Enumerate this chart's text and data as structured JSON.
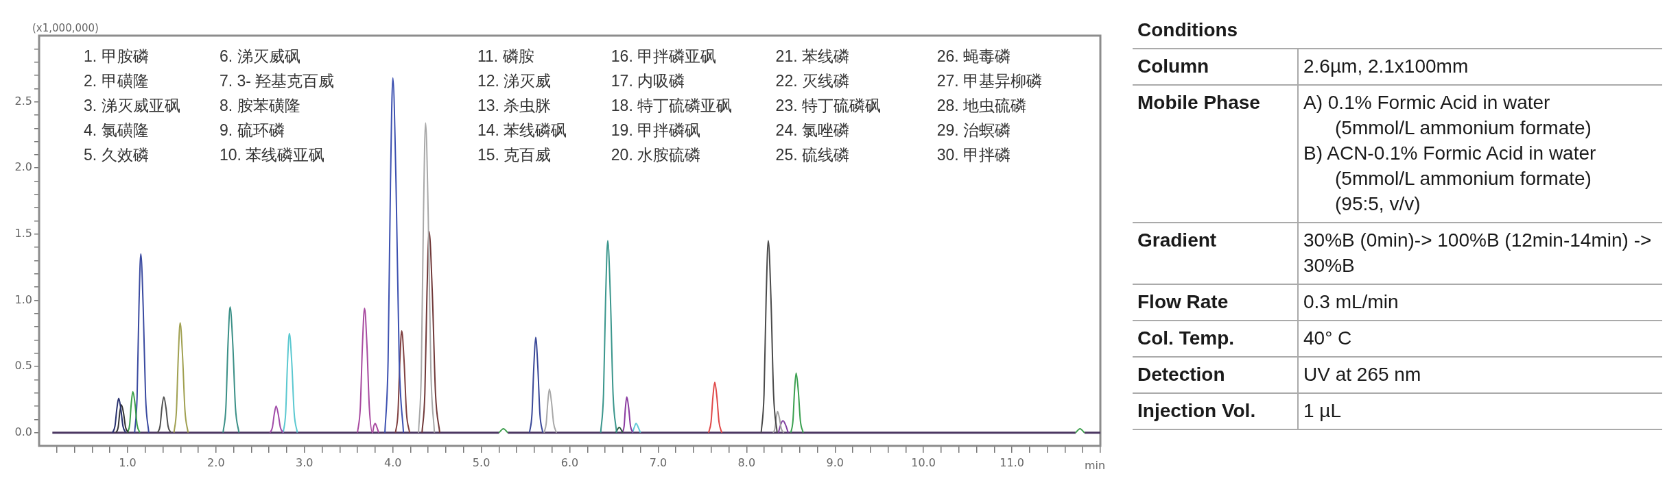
{
  "chart_data": [
    {
      "type": "line",
      "ylabel": "(x1,000,000)",
      "xlabel": "min",
      "marker": "none",
      "annotations": [
        "1. 甲胺磷",
        "2. 甲磺隆",
        "3. 涕灭威亚砜",
        "4. 氯磺隆",
        "5. 久效磷",
        "6. 涕灭威砜",
        "7. 3- 羟基克百威",
        "8. 胺苯磺隆",
        "9. 硫环磷",
        "10. 苯线磷亚砜",
        "11. 磷胺",
        "12. 涕灭威",
        "13. 杀虫脒",
        "14. 苯线磷砜",
        "15. 克百威",
        "16. 甲拌磷亚砜",
        "17. 内吸磷",
        "18. 特丁硫磷亚砜",
        "19. 甲拌磷砜",
        "20. 水胺硫磷",
        "21. 苯线磷",
        "22. 灭线磷",
        "23. 特丁硫磷砜",
        "24. 氯唑磷",
        "25. 硫线磷",
        "26. 蝇毒磷",
        "27. 甲基异柳磷",
        "28. 地虫硫磷",
        "29. 治螟磷",
        "30. 甲拌磷"
      ],
      "xlim": [
        0,
        12
      ],
      "ylim": [
        -0.1,
        3.0
      ],
      "xticks": [
        {
          "value": 0.2,
          "label": null
        },
        {
          "value": 0.4,
          "label": null
        },
        {
          "value": 0.6,
          "label": null
        },
        {
          "value": 0.8,
          "label": null
        },
        {
          "value": 1,
          "label": "1.0"
        },
        {
          "value": 1.2,
          "label": null
        },
        {
          "value": 1.4,
          "label": null
        },
        {
          "value": 1.6,
          "label": null
        },
        {
          "value": 1.8,
          "label": null
        },
        {
          "value": 2,
          "label": "2.0"
        },
        {
          "value": 2.2,
          "label": null
        },
        {
          "value": 2.4,
          "label": null
        },
        {
          "value": 2.6,
          "label": null
        },
        {
          "value": 2.8,
          "label": null
        },
        {
          "value": 3,
          "label": "3.0"
        },
        {
          "value": 3.2,
          "label": null
        },
        {
          "value": 3.4,
          "label": null
        },
        {
          "value": 3.6,
          "label": null
        },
        {
          "value": 3.8,
          "label": null
        },
        {
          "value": 4,
          "label": "4.0"
        },
        {
          "value": 4.2,
          "label": null
        },
        {
          "value": 4.4,
          "label": null
        },
        {
          "value": 4.6,
          "label": null
        },
        {
          "value": 4.8,
          "label": null
        },
        {
          "value": 5,
          "label": "5.0"
        },
        {
          "value": 5.2,
          "label": null
        },
        {
          "value": 5.4,
          "label": null
        },
        {
          "value": 5.6,
          "label": null
        },
        {
          "value": 5.8,
          "label": null
        },
        {
          "value": 6,
          "label": "6.0"
        },
        {
          "value": 6.2,
          "label": null
        },
        {
          "value": 6.4,
          "label": null
        },
        {
          "value": 6.6,
          "label": null
        },
        {
          "value": 6.8,
          "label": null
        },
        {
          "value": 7,
          "label": "7.0"
        },
        {
          "value": 7.2,
          "label": null
        },
        {
          "value": 7.4,
          "label": null
        },
        {
          "value": 7.6,
          "label": null
        },
        {
          "value": 7.8,
          "label": null
        },
        {
          "value": 8,
          "label": "8.0"
        },
        {
          "value": 8.2,
          "label": null
        },
        {
          "value": 8.4,
          "label": null
        },
        {
          "value": 8.6,
          "label": null
        },
        {
          "value": 8.8,
          "label": null
        },
        {
          "value": 9,
          "label": "9.0"
        },
        {
          "value": 9.2,
          "label": null
        },
        {
          "value": 9.4,
          "label": null
        },
        {
          "value": 9.6,
          "label": null
        },
        {
          "value": 9.8,
          "label": null
        },
        {
          "value": 10,
          "label": "10.0"
        },
        {
          "value": 10.2,
          "label": null
        },
        {
          "value": 10.4,
          "label": null
        },
        {
          "value": 10.6,
          "label": null
        },
        {
          "value": 10.8,
          "label": null
        },
        {
          "value": 11,
          "label": "11.0"
        },
        {
          "value": 11.2,
          "label": null
        },
        {
          "value": 11.4,
          "label": null
        },
        {
          "value": 11.6,
          "label": null
        },
        {
          "value": 11.8,
          "label": null
        },
        {
          "value": 12,
          "label": null
        }
      ],
      "yticks": [
        {
          "value": 0,
          "label": "0.0"
        },
        {
          "value": 0.1,
          "label": null
        },
        {
          "value": 0.2,
          "label": null
        },
        {
          "value": 0.3,
          "label": null
        },
        {
          "value": 0.4,
          "label": null
        },
        0.5,
        {
          "value": 0.6,
          "label": null
        },
        {
          "value": 0.7,
          "label": null
        },
        {
          "value": 0.8,
          "label": null
        },
        {
          "value": 0.9,
          "label": null
        },
        {
          "value": 1,
          "label": "1.0"
        },
        {
          "value": 1.1,
          "label": null
        },
        {
          "value": 1.2,
          "label": null
        },
        {
          "value": 1.3,
          "label": null
        },
        {
          "value": 1.4,
          "label": null
        },
        1.5,
        {
          "value": 1.6,
          "label": null
        },
        {
          "value": 1.7,
          "label": null
        },
        {
          "value": 1.8,
          "label": null
        },
        {
          "value": 1.9,
          "label": null
        },
        {
          "value": 2,
          "label": "2.0"
        },
        {
          "value": 2.1,
          "label": null
        },
        {
          "value": 2.2,
          "label": null
        },
        {
          "value": 2.3,
          "label": null
        },
        {
          "value": 2.4,
          "label": null
        },
        2.5,
        {
          "value": 2.6,
          "label": null
        },
        {
          "value": 2.7,
          "label": null
        },
        {
          "value": 2.8,
          "label": null
        },
        {
          "value": 2.9,
          "label": null
        }
      ],
      "series": [
        {
          "color": "#27306e",
          "x": [
            0.83,
            0.858,
            0.879,
            0.9,
            0.924,
            0.948,
            0.98
          ],
          "values": [
            0,
            0.05,
            0.18,
            0.26,
            0.18,
            0.05,
            0
          ]
        },
        {
          "color": "#333333",
          "x": [
            0.87,
            0.894,
            0.912,
            0.93,
            0.954,
            0.978,
            1.01
          ],
          "values": [
            0,
            0.04,
            0.15,
            0.21,
            0.15,
            0.04,
            0
          ]
        },
        {
          "color": "#3aa04a",
          "x": [
            1,
            1.024,
            1.042,
            1.06,
            1.084,
            1.108,
            1.14
          ],
          "values": [
            0,
            0.06,
            0.22,
            0.31,
            0.22,
            0.06,
            0
          ]
        },
        {
          "color": "#3a4aa0",
          "x": [
            1.08,
            1.108,
            1.129,
            1.15,
            1.177,
            1.204,
            1.24
          ],
          "values": [
            0,
            0.27,
            0.95,
            1.35,
            0.95,
            0.27,
            0
          ]
        },
        {
          "color": "#505050",
          "x": [
            1.34,
            1.368,
            1.389,
            1.41,
            1.434,
            1.458,
            1.49
          ],
          "values": [
            0,
            0.05,
            0.19,
            0.27,
            0.19,
            0.05,
            0
          ]
        },
        {
          "color": "#a0a050",
          "x": [
            1.525,
            1.553,
            1.574,
            1.595,
            1.622,
            1.649,
            1.685
          ],
          "values": [
            0,
            0.17,
            0.58,
            0.83,
            0.58,
            0.17,
            0
          ]
        },
        {
          "color": "#3a8f86",
          "x": [
            2.08,
            2.112,
            2.136,
            2.16,
            2.19,
            2.22,
            2.26
          ],
          "values": [
            0,
            0.19,
            0.67,
            0.95,
            0.67,
            0.19,
            0
          ]
        },
        {
          "color": "#a04aa8",
          "x": [
            2.61,
            2.638,
            2.659,
            2.68,
            2.704,
            2.728,
            2.76
          ],
          "values": [
            0,
            0.04,
            0.14,
            0.2,
            0.14,
            0.04,
            0
          ]
        },
        {
          "color": "#5ac8d0",
          "x": [
            2.76,
            2.788,
            2.809,
            2.83,
            2.857,
            2.884,
            2.92
          ],
          "values": [
            0,
            0.15,
            0.53,
            0.75,
            0.53,
            0.15,
            0
          ]
        },
        {
          "color": "#a84aa0",
          "x": [
            3.6,
            3.632,
            3.656,
            3.68,
            3.707,
            3.734,
            3.77,
            3.785,
            3.8,
            3.815,
            3.84
          ],
          "values": [
            0,
            0.19,
            0.66,
            0.94,
            0.66,
            0.19,
            0,
            0.05,
            0.07,
            0.05,
            0
          ]
        },
        {
          "color": "#3c50b0",
          "x": [
            3.91,
            3.946,
            3.973,
            4,
            4.036,
            4.072,
            4.12
          ],
          "values": [
            0,
            0.54,
            1.88,
            2.68,
            1.88,
            0.54,
            0
          ]
        },
        {
          "color": "#804040",
          "x": [
            4.03,
            4.058,
            4.079,
            4.1,
            4.127,
            4.154,
            4.19
          ],
          "values": [
            0,
            0.15,
            0.54,
            0.77,
            0.54,
            0.15,
            0
          ]
        },
        {
          "color": "#a8a8a8",
          "x": [
            4.29,
            4.322,
            4.346,
            4.37,
            4.4,
            4.43,
            4.47
          ],
          "values": [
            0,
            0.47,
            1.64,
            2.34,
            1.64,
            0.47,
            0
          ]
        },
        {
          "color": "#703838",
          "x": [
            4.33,
            4.362,
            4.386,
            4.41,
            4.446,
            4.482,
            4.53
          ],
          "values": [
            0,
            0.3,
            1.06,
            1.52,
            1.06,
            0.3,
            0
          ]
        },
        {
          "color": "#40a050",
          "x": [
            5.2,
            5.25,
            5.3
          ],
          "values": [
            0,
            0.03,
            0
          ]
        },
        {
          "color": "#3a4898",
          "x": [
            5.545,
            5.573,
            5.594,
            5.615,
            5.639,
            5.663,
            5.695
          ],
          "values": [
            0,
            0.14,
            0.5,
            0.72,
            0.5,
            0.14,
            0
          ]
        },
        {
          "color": "#a8a8a8",
          "x": [
            5.71,
            5.734,
            5.752,
            5.77,
            5.794,
            5.818,
            5.85
          ],
          "values": [
            0,
            0.07,
            0.23,
            0.33,
            0.23,
            0.07,
            0
          ]
        },
        {
          "color": "#3a968c",
          "x": [
            6.35,
            6.382,
            6.406,
            6.43,
            6.46,
            6.49,
            6.53
          ],
          "values": [
            0,
            0.29,
            1.02,
            1.45,
            1.02,
            0.29,
            0
          ]
        },
        {
          "color": "#2a5a3a",
          "x": [
            6.52,
            6.56,
            6.6
          ],
          "values": [
            0,
            0.04,
            0
          ]
        },
        {
          "color": "#8a3aa0",
          "x": [
            6.595,
            6.615,
            6.63,
            6.645,
            6.666,
            6.687,
            6.715
          ],
          "values": [
            0,
            0.05,
            0.19,
            0.27,
            0.19,
            0.05,
            0
          ]
        },
        {
          "color": "#60c8d8",
          "x": [
            6.71,
            6.73,
            6.75,
            6.775,
            6.8
          ],
          "values": [
            0,
            0.04,
            0.07,
            0.04,
            0
          ]
        },
        {
          "color": "#e04848",
          "x": [
            7.57,
            7.598,
            7.619,
            7.64,
            7.664,
            7.688,
            7.72
          ],
          "values": [
            0,
            0.08,
            0.27,
            0.38,
            0.27,
            0.08,
            0
          ]
        },
        {
          "color": "#4a4a4a",
          "x": [
            8.165,
            8.197,
            8.221,
            8.245,
            8.275,
            8.305,
            8.345
          ],
          "values": [
            0,
            0.29,
            1.02,
            1.45,
            1.02,
            0.29,
            0
          ]
        },
        {
          "color": "#a0a0a0",
          "x": [
            8.3,
            8.32,
            8.335,
            8.35,
            8.371,
            8.392,
            8.42
          ],
          "values": [
            0,
            0.03,
            0.11,
            0.16,
            0.11,
            0.03,
            0
          ]
        },
        {
          "color": "#8040a0",
          "x": [
            8.36,
            8.385,
            8.41,
            8.44,
            8.47
          ],
          "values": [
            0,
            0.06,
            0.09,
            0.06,
            0
          ]
        },
        {
          "color": "#3aa050",
          "x": [
            8.5,
            8.524,
            8.542,
            8.56,
            8.584,
            8.608,
            8.64
          ],
          "values": [
            0,
            0.09,
            0.32,
            0.45,
            0.32,
            0.09,
            0
          ]
        },
        {
          "color": "#40a050",
          "x": [
            11.72,
            11.77,
            11.82
          ],
          "values": [
            0,
            0.03,
            0
          ]
        },
        {
          "color": "#4a3560",
          "x": [
            0.15,
            5.2,
            5.25,
            5.3,
            11.72,
            11.77,
            11.82,
            12
          ],
          "values": [
            0,
            0,
            null,
            0,
            0,
            null,
            0,
            0
          ]
        }
      ]
    },
    {
      "type": "other",
      "title": "Conditions",
      "annotations": [
        "Column",
        "2.6µm, 2.1x100mm",
        "Mobile Phase",
        "A) 0.1% Formic Acid in water\n(5mmol/L ammonium formate)\nB) ACN-0.1% Formic Acid in water\n(5mmol/L ammonium formate)\n(95:5, v/v)",
        "Gradient",
        "30%B (0min)-> 100%B (12min-14min) -> 30%B",
        "Flow Rate",
        "0.3 mL/min",
        "Col. Temp.",
        "40° C",
        "Detection",
        "UV at 265 nm",
        "Injection Vol.",
        "1 µL"
      ]
    }
  ]
}
